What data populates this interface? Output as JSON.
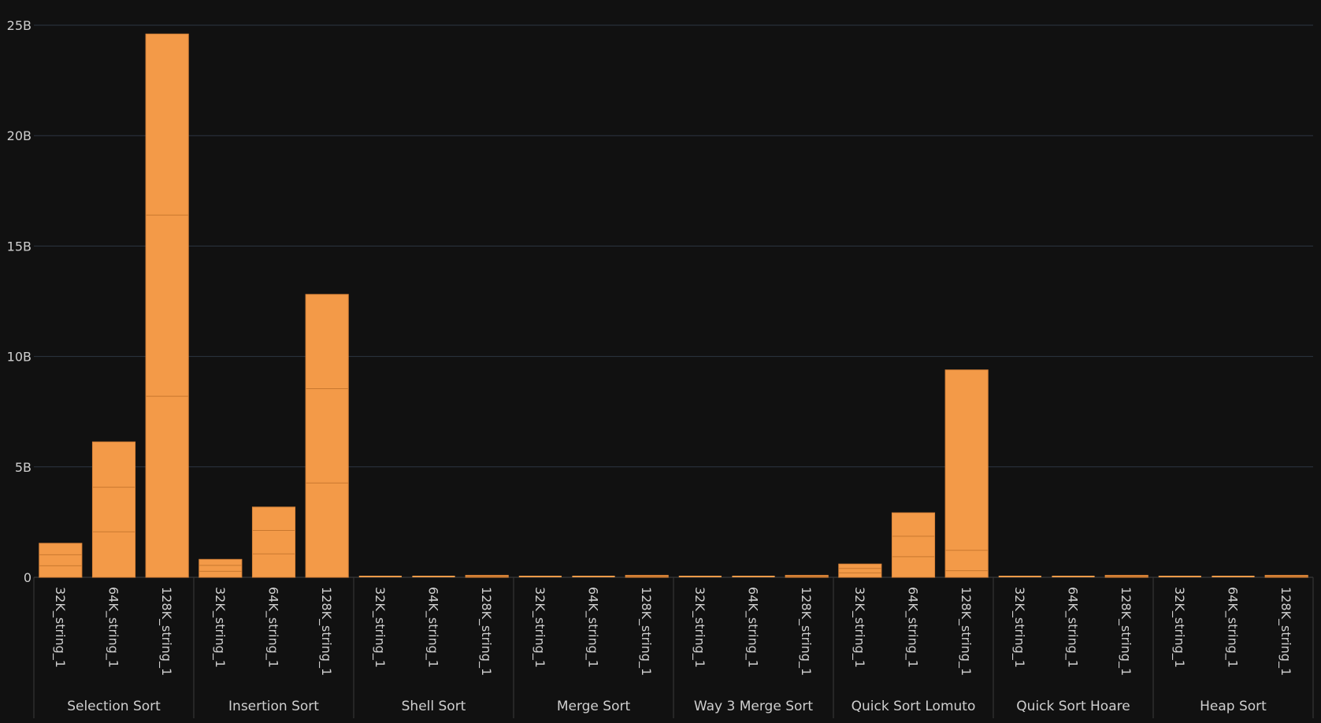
{
  "colors": {
    "background": "#111111",
    "bar": "#f39a48",
    "bar_edge": "#d9843a",
    "segment_line": "#c9782f",
    "grid": "#2d3642",
    "axis_text": "#cfcfcf",
    "separator": "#3a3a3a",
    "baseline": "#444444"
  },
  "chart_data": {
    "type": "bar",
    "stacked": true,
    "title": "",
    "xlabel": "",
    "ylabel": "",
    "ylim": [
      0,
      25000000000
    ],
    "y_ticks": [
      {
        "value": 0,
        "label": "0"
      },
      {
        "value": 5000000000,
        "label": "5B"
      },
      {
        "value": 10000000000,
        "label": "10B"
      },
      {
        "value": 15000000000,
        "label": "15B"
      },
      {
        "value": 20000000000,
        "label": "20B"
      },
      {
        "value": 25000000000,
        "label": "25B"
      }
    ],
    "grid": true,
    "legend": "none",
    "category_labels": [
      "32K_string_1",
      "64K_string_1",
      "128K_string_1"
    ],
    "groups": [
      {
        "name": "Selection Sort",
        "bars": [
          {
            "category": "32K_string_1",
            "segments": [
              520000000,
              500000000,
              520000000
            ]
          },
          {
            "category": "64K_string_1",
            "segments": [
              2060000000,
              2020000000,
              2050000000
            ]
          },
          {
            "category": "128K_string_1",
            "segments": [
              8200000000,
              8200000000,
              8200000000
            ]
          }
        ]
      },
      {
        "name": "Insertion Sort",
        "bars": [
          {
            "category": "32K_string_1",
            "segments": [
              270000000,
              270000000,
              270000000
            ]
          },
          {
            "category": "64K_string_1",
            "segments": [
              1060000000,
              1060000000,
              1060000000
            ]
          },
          {
            "category": "128K_string_1",
            "segments": [
              4270000000,
              4270000000,
              4270000000
            ]
          }
        ]
      },
      {
        "name": "Shell Sort",
        "bars": [
          {
            "category": "32K_string_1",
            "segments": [
              10000000,
              10000000,
              10000000
            ]
          },
          {
            "category": "64K_string_1",
            "segments": [
              20000000,
              20000000,
              20000000
            ]
          },
          {
            "category": "128K_string_1",
            "segments": [
              30000000,
              30000000,
              30000000
            ]
          }
        ]
      },
      {
        "name": "Merge Sort",
        "bars": [
          {
            "category": "32K_string_1",
            "segments": [
              10000000,
              10000000,
              10000000
            ]
          },
          {
            "category": "64K_string_1",
            "segments": [
              20000000,
              20000000,
              20000000
            ]
          },
          {
            "category": "128K_string_1",
            "segments": [
              30000000,
              30000000,
              30000000
            ]
          }
        ]
      },
      {
        "name": "Way 3 Merge Sort",
        "bars": [
          {
            "category": "32K_string_1",
            "segments": [
              10000000,
              10000000,
              10000000
            ]
          },
          {
            "category": "64K_string_1",
            "segments": [
              20000000,
              20000000,
              20000000
            ]
          },
          {
            "category": "128K_string_1",
            "segments": [
              30000000,
              30000000,
              30000000
            ]
          }
        ]
      },
      {
        "name": "Quick Sort Lomuto",
        "bars": [
          {
            "category": "32K_string_1",
            "segments": [
              200000000,
              200000000,
              200000000
            ]
          },
          {
            "category": "64K_string_1",
            "segments": [
              930000000,
              930000000,
              1060000000
            ]
          },
          {
            "category": "128K_string_1",
            "segments": [
              300000000,
              920000000,
              8170000000
            ]
          }
        ]
      },
      {
        "name": "Quick Sort Hoare",
        "bars": [
          {
            "category": "32K_string_1",
            "segments": [
              10000000,
              10000000,
              10000000
            ]
          },
          {
            "category": "64K_string_1",
            "segments": [
              20000000,
              20000000,
              20000000
            ]
          },
          {
            "category": "128K_string_1",
            "segments": [
              30000000,
              30000000,
              30000000
            ]
          }
        ]
      },
      {
        "name": "Heap Sort",
        "bars": [
          {
            "category": "32K_string_1",
            "segments": [
              10000000,
              10000000,
              10000000
            ]
          },
          {
            "category": "64K_string_1",
            "segments": [
              20000000,
              20000000,
              20000000
            ]
          },
          {
            "category": "128K_string_1",
            "segments": [
              30000000,
              30000000,
              30000000
            ]
          }
        ]
      }
    ]
  }
}
